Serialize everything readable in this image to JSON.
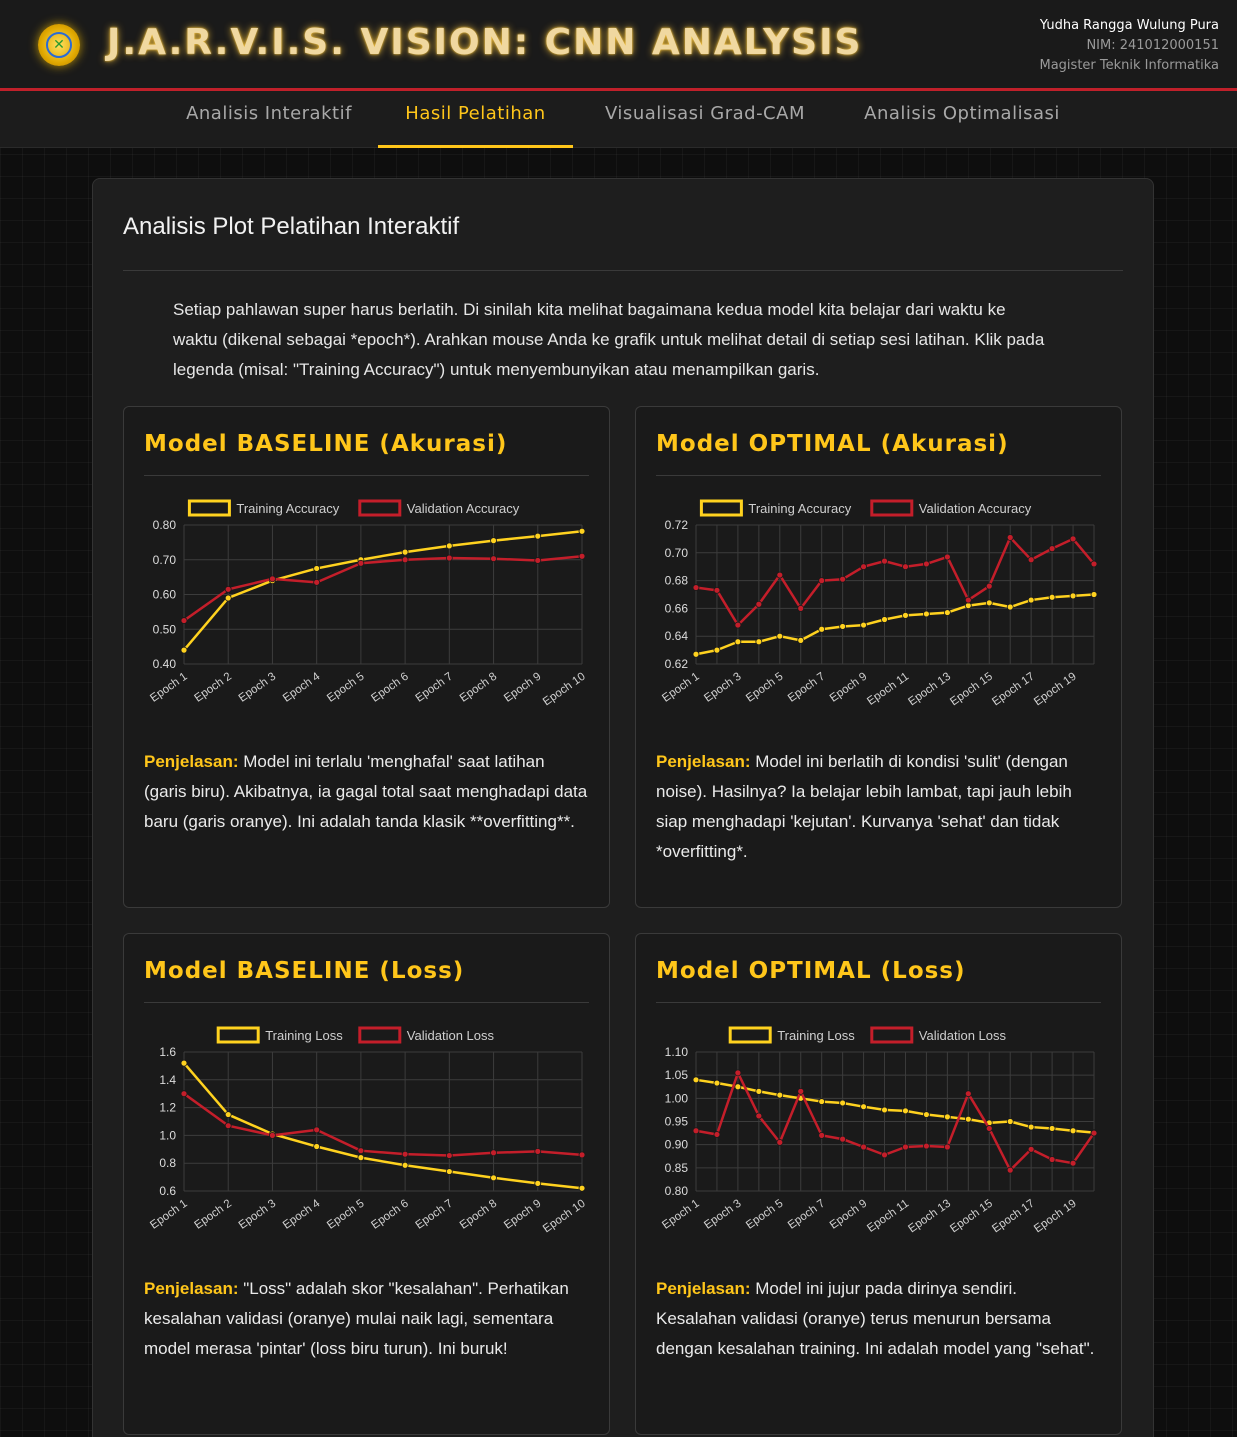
{
  "header": {
    "title": "J.A.R.V.I.S. VISION: CNN ANALYSIS",
    "user_name": "Yudha Rangga Wulung Pura",
    "nim": "NIM: 241012000151",
    "program": "Magister Teknik Informatika"
  },
  "nav": {
    "tabs": [
      {
        "label": "Analisis Interaktif"
      },
      {
        "label": "Hasil Pelatihan"
      },
      {
        "label": "Visualisasi Grad-CAM"
      },
      {
        "label": "Analisis Optimalisasi"
      }
    ],
    "active_index": 1
  },
  "main": {
    "title": "Analisis Plot Pelatihan Interaktif",
    "intro": "Setiap pahlawan super harus berlatih. Di sinilah kita melihat bagaimana kedua model kita belajar dari waktu ke waktu (dikenal sebagai *epoch*). Arahkan mouse Anda ke grafik untuk melihat detail di setiap sesi latihan. Klik pada legenda (misal: \"Training Accuracy\") untuk menyembunyikan atau menampilkan garis."
  },
  "cards": [
    {
      "title": "Model BASELINE (Akurasi)",
      "expl_label": "Penjelasan:",
      "expl_text": " Model ini terlalu 'menghafal' saat latihan (garis biru). Akibatnya, ia gagal total saat menghadapi data baru (garis oranye). Ini adalah tanda klasik **overfitting**."
    },
    {
      "title": "Model OPTIMAL (Akurasi)",
      "expl_label": "Penjelasan:",
      "expl_text": " Model ini berlatih di kondisi 'sulit' (dengan noise). Hasilnya? Ia belajar lebih lambat, tapi jauh lebih siap menghadapi 'kejutan'. Kurvanya 'sehat' dan tidak *overfitting*."
    },
    {
      "title": "Model BASELINE (Loss)",
      "expl_label": "Penjelasan:",
      "expl_text": " \"Loss\" adalah skor \"kesalahan\". Perhatikan kesalahan validasi (oranye) mulai naik lagi, sementara model merasa 'pintar' (loss biru turun). Ini buruk!"
    },
    {
      "title": "Model OPTIMAL (Loss)",
      "expl_label": "Penjelasan:",
      "expl_text": " Model ini jujur pada dirinya sendiri. Kesalahan validasi (oranye) terus menurun bersama dengan kesalahan training. Ini adalah model yang \"sehat\"."
    }
  ],
  "colors": {
    "training": "#ffd21f",
    "validation": "#c41e2a",
    "accent": "#ffc61a",
    "header_line": "#c0202a"
  },
  "chart_data": [
    {
      "type": "line",
      "legend_position": "top",
      "x": [
        "Epoch 1",
        "Epoch 2",
        "Epoch 3",
        "Epoch 4",
        "Epoch 5",
        "Epoch 6",
        "Epoch 7",
        "Epoch 8",
        "Epoch 9",
        "Epoch 10"
      ],
      "x_tick_labels": [
        "Epoch 1",
        "Epoch 2",
        "Epoch 3",
        "Epoch 4",
        "Epoch 5",
        "Epoch 6",
        "Epoch 7",
        "Epoch 8",
        "Epoch 9",
        "Epoch 10"
      ],
      "y_ticks": [
        0.4,
        0.5,
        0.6,
        0.7,
        0.8
      ],
      "y_tick_labels": [
        "0.40",
        "0.50",
        "0.60",
        "0.70",
        "0.80"
      ],
      "ylim": [
        0.4,
        0.8
      ],
      "grid": true,
      "series": [
        {
          "name": "Training Accuracy",
          "values": [
            0.44,
            0.59,
            0.64,
            0.675,
            0.7,
            0.722,
            0.74,
            0.755,
            0.768,
            0.782
          ]
        },
        {
          "name": "Validation Accuracy",
          "values": [
            0.525,
            0.615,
            0.645,
            0.635,
            0.69,
            0.7,
            0.705,
            0.703,
            0.698,
            0.71
          ]
        }
      ]
    },
    {
      "type": "line",
      "legend_position": "top",
      "x": [
        "Epoch 1",
        "Epoch 2",
        "Epoch 3",
        "Epoch 4",
        "Epoch 5",
        "Epoch 6",
        "Epoch 7",
        "Epoch 8",
        "Epoch 9",
        "Epoch 10",
        "Epoch 11",
        "Epoch 12",
        "Epoch 13",
        "Epoch 14",
        "Epoch 15",
        "Epoch 16",
        "Epoch 17",
        "Epoch 18",
        "Epoch 19",
        "Epoch 20"
      ],
      "x_tick_labels": [
        "Epoch 1",
        "Epoch 3",
        "Epoch 5",
        "Epoch 7",
        "Epoch 9",
        "Epoch 11",
        "Epoch 13",
        "Epoch 15",
        "Epoch 17",
        "Epoch 19"
      ],
      "y_ticks": [
        0.62,
        0.64,
        0.66,
        0.68,
        0.7,
        0.72
      ],
      "y_tick_labels": [
        "0.62",
        "0.64",
        "0.66",
        "0.68",
        "0.70",
        "0.72"
      ],
      "ylim": [
        0.62,
        0.72
      ],
      "grid": true,
      "series": [
        {
          "name": "Training Accuracy",
          "values": [
            0.627,
            0.63,
            0.636,
            0.636,
            0.64,
            0.637,
            0.645,
            0.647,
            0.648,
            0.652,
            0.655,
            0.656,
            0.657,
            0.662,
            0.664,
            0.661,
            0.666,
            0.668,
            0.669,
            0.67
          ]
        },
        {
          "name": "Validation Accuracy",
          "values": [
            0.675,
            0.673,
            0.648,
            0.663,
            0.684,
            0.66,
            0.68,
            0.681,
            0.69,
            0.694,
            0.69,
            0.692,
            0.697,
            0.666,
            0.676,
            0.711,
            0.695,
            0.703,
            0.71,
            0.692
          ]
        }
      ]
    },
    {
      "type": "line",
      "legend_position": "top",
      "x": [
        "Epoch 1",
        "Epoch 2",
        "Epoch 3",
        "Epoch 4",
        "Epoch 5",
        "Epoch 6",
        "Epoch 7",
        "Epoch 8",
        "Epoch 9",
        "Epoch 10"
      ],
      "x_tick_labels": [
        "Epoch 1",
        "Epoch 2",
        "Epoch 3",
        "Epoch 4",
        "Epoch 5",
        "Epoch 6",
        "Epoch 7",
        "Epoch 8",
        "Epoch 9",
        "Epoch 10"
      ],
      "y_ticks": [
        0.6,
        0.8,
        1.0,
        1.2,
        1.4,
        1.6
      ],
      "y_tick_labels": [
        "0.6",
        "0.8",
        "1.0",
        "1.2",
        "1.4",
        "1.6"
      ],
      "ylim": [
        0.6,
        1.6
      ],
      "grid": true,
      "series": [
        {
          "name": "Training Loss",
          "values": [
            1.52,
            1.15,
            1.01,
            0.92,
            0.84,
            0.785,
            0.74,
            0.695,
            0.655,
            0.62
          ]
        },
        {
          "name": "Validation Loss",
          "values": [
            1.3,
            1.07,
            1.0,
            1.04,
            0.89,
            0.865,
            0.855,
            0.875,
            0.885,
            0.86
          ]
        }
      ]
    },
    {
      "type": "line",
      "legend_position": "top",
      "x": [
        "Epoch 1",
        "Epoch 2",
        "Epoch 3",
        "Epoch 4",
        "Epoch 5",
        "Epoch 6",
        "Epoch 7",
        "Epoch 8",
        "Epoch 9",
        "Epoch 10",
        "Epoch 11",
        "Epoch 12",
        "Epoch 13",
        "Epoch 14",
        "Epoch 15",
        "Epoch 16",
        "Epoch 17",
        "Epoch 18",
        "Epoch 19",
        "Epoch 20"
      ],
      "x_tick_labels": [
        "Epoch 1",
        "Epoch 3",
        "Epoch 5",
        "Epoch 7",
        "Epoch 9",
        "Epoch 11",
        "Epoch 13",
        "Epoch 15",
        "Epoch 17",
        "Epoch 19"
      ],
      "y_ticks": [
        0.8,
        0.85,
        0.9,
        0.95,
        1.0,
        1.05,
        1.1
      ],
      "y_tick_labels": [
        "0.80",
        "0.85",
        "0.90",
        "0.95",
        "1.00",
        "1.05",
        "1.10"
      ],
      "ylim": [
        0.8,
        1.1
      ],
      "grid": true,
      "series": [
        {
          "name": "Training Loss",
          "values": [
            1.04,
            1.033,
            1.025,
            1.015,
            1.007,
            1.0,
            0.993,
            0.99,
            0.982,
            0.975,
            0.973,
            0.965,
            0.96,
            0.955,
            0.947,
            0.95,
            0.938,
            0.935,
            0.93,
            0.926
          ]
        },
        {
          "name": "Validation Loss",
          "values": [
            0.93,
            0.922,
            1.055,
            0.962,
            0.905,
            1.015,
            0.92,
            0.912,
            0.895,
            0.878,
            0.895,
            0.897,
            0.895,
            1.01,
            0.935,
            0.845,
            0.89,
            0.868,
            0.86,
            0.925
          ]
        }
      ]
    }
  ]
}
